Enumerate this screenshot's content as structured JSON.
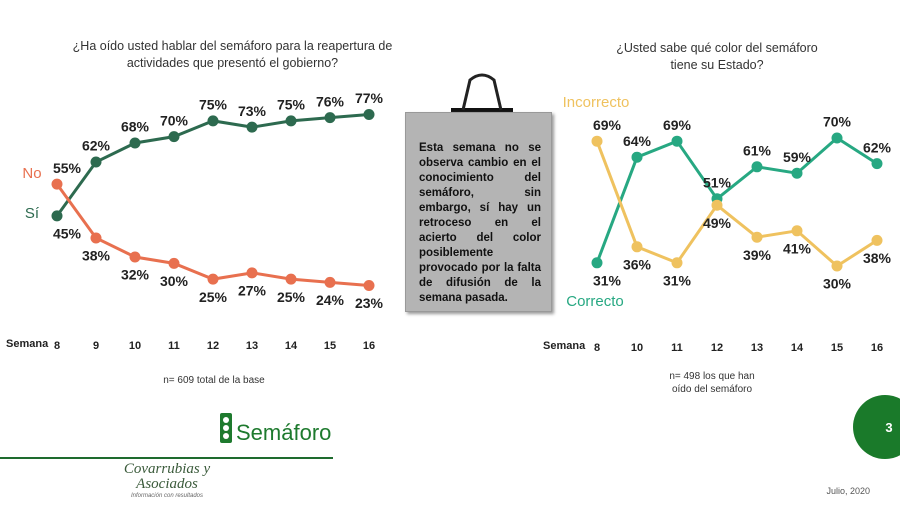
{
  "chart_data": [
    {
      "type": "line",
      "title": "¿Ha oído usted hablar del semáforo para la reapertura de actividades que presentó el gobierno?",
      "x_label": "Semana",
      "categories": [
        "8",
        "9",
        "10",
        "11",
        "12",
        "13",
        "14",
        "15",
        "16"
      ],
      "series": [
        {
          "name": "Sí",
          "color": "#2d6a4f",
          "values": [
            45,
            62,
            68,
            70,
            75,
            73,
            75,
            76,
            77
          ],
          "value_labels": [
            "45%",
            "62%",
            "68%",
            "70%",
            "75%",
            "73%",
            "75%",
            "76%",
            "77%"
          ]
        },
        {
          "name": "No",
          "color": "#e8704f",
          "values": [
            55,
            38,
            32,
            30,
            25,
            27,
            25,
            24,
            23
          ],
          "value_labels": [
            "55%",
            "38%",
            "32%",
            "30%",
            "25%",
            "27%",
            "25%",
            "24%",
            "23%"
          ]
        }
      ],
      "ylim": [
        20,
        80
      ],
      "note": "n= 609 total de la base"
    },
    {
      "type": "line",
      "title": "¿Usted sabe qué color del semáforo tiene su Estado?",
      "x_label": "Semana",
      "categories": [
        "8",
        "10",
        "11",
        "12",
        "13",
        "14",
        "15",
        "16"
      ],
      "series": [
        {
          "name": "Correcto",
          "color": "#27a882",
          "values": [
            31,
            64,
            69,
            51,
            61,
            59,
            70,
            62
          ],
          "value_labels": [
            "31%",
            "64%",
            "69%",
            "51%",
            "61%",
            "59%",
            "70%",
            "62%"
          ]
        },
        {
          "name": "Incorrecto",
          "color": "#efc25f",
          "values": [
            69,
            36,
            31,
            49,
            39,
            41,
            30,
            38
          ],
          "value_labels": [
            "69%",
            "36%",
            "31%",
            "49%",
            "39%",
            "41%",
            "30%",
            "38%"
          ]
        }
      ],
      "ylim": [
        20,
        80
      ],
      "note": "n= 498 los que han oído del semáforo"
    }
  ],
  "comment": "Esta semana no se observa cambio en el conocimiento del semáforo, sin embargo, sí hay un retroceso en el acierto del color posiblemente provocado por la falta de difusión de la semana pasada.",
  "brand": "Semáforo",
  "logo": {
    "name": "Covarrubias y Asociados",
    "tagline": "Información con resultados"
  },
  "page_number": "3",
  "date": "Julio, 2020"
}
